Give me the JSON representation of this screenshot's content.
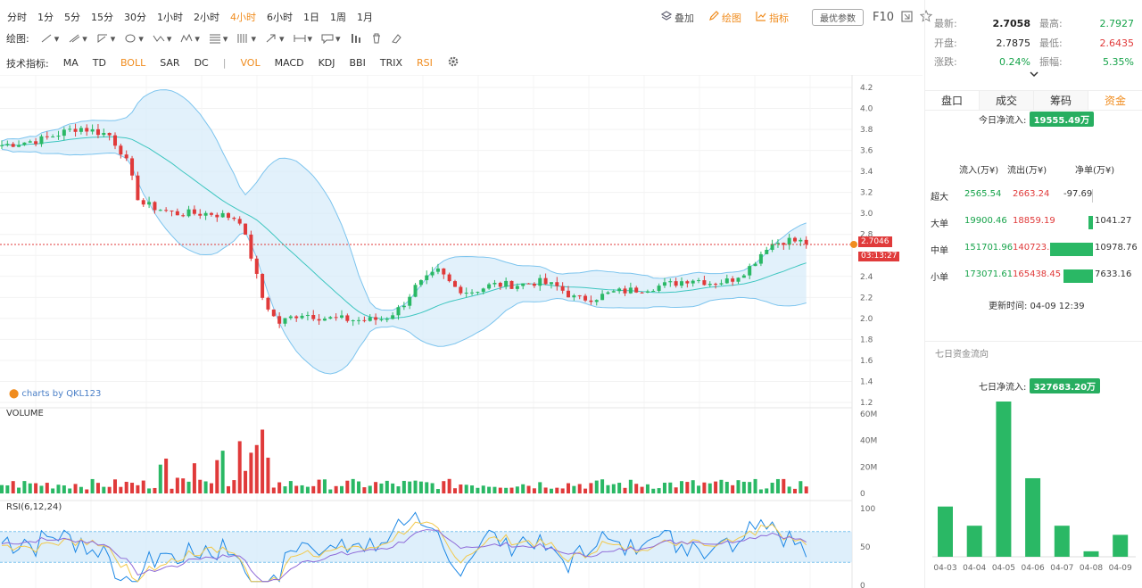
{
  "toolbar": {
    "timeframes": [
      "分时",
      "1分",
      "5分",
      "15分",
      "30分",
      "1小时",
      "2小时",
      "4小时",
      "6小时",
      "1日",
      "1周",
      "1月"
    ],
    "active_timeframe": "4小时",
    "overlay_label": "叠加",
    "draw_label": "绘图",
    "indicator_label": "指标",
    "optimal_params_label": "最优参数",
    "f10_label": "F10"
  },
  "drawing": {
    "label": "绘图:"
  },
  "indicators": {
    "label": "技术指标:",
    "items": [
      "MA",
      "TD",
      "BOLL",
      "SAR",
      "DC",
      "|",
      "VOL",
      "MACD",
      "KDJ",
      "BBI",
      "TRIX",
      "RSI"
    ],
    "highlighted": [
      "BOLL",
      "VOL",
      "RSI"
    ]
  },
  "watermark": "charts by QKL123",
  "volume_label": "VOLUME",
  "rsi_label": "RSI(6,12,24)",
  "price_tag": {
    "price": "2.7046",
    "countdown": "03:13:27"
  },
  "colors": {
    "up": "#2ab865",
    "down": "#e03a3a",
    "accent": "#f08c1e",
    "band_fill": "#d6ebfa",
    "band_line": "#7cc4ee",
    "mid_line": "#3ec6c0"
  },
  "chart_data": [
    {
      "type": "candlestick",
      "title": "",
      "ylim": [
        1.2,
        4.2
      ],
      "yticks": [
        "4.2",
        "4.0",
        "3.8",
        "3.6",
        "3.4",
        "3.2",
        "3.0",
        "2.8",
        "2.6",
        "2.4",
        "2.2",
        "2.0",
        "1.8",
        "1.6",
        "1.4",
        "1.2"
      ],
      "overlays": [
        "BOLL upper",
        "BOLL middle",
        "BOLL lower"
      ],
      "last_price": 2.7046
    },
    {
      "type": "bar",
      "title": "VOLUME",
      "ylim": [
        0,
        60
      ],
      "yticks": [
        "60M",
        "40M",
        "20M",
        "0"
      ]
    },
    {
      "type": "line",
      "title": "RSI(6,12,24)",
      "ylim": [
        0,
        100
      ],
      "yticks": [
        "100",
        "50",
        "0"
      ],
      "band": [
        30,
        70
      ]
    }
  ],
  "quote": {
    "latest_label": "最新:",
    "latest": "2.7058",
    "high_label": "最高:",
    "high": "2.7927",
    "open_label": "开盘:",
    "open": "2.7875",
    "low_label": "最低:",
    "low": "2.6435",
    "change_label": "涨跌:",
    "change": "0.24%",
    "amplitude_label": "振幅:",
    "amplitude": "5.35%"
  },
  "tabs": [
    "盘口",
    "成交",
    "筹码",
    "资金"
  ],
  "fund_flow": {
    "today_label": "今日净流入:",
    "today_value": "19555.49万",
    "headers": [
      "流入(万¥)",
      "流出(万¥)",
      "净单(万¥)"
    ],
    "rows": [
      {
        "label": "超大",
        "inflow": "2565.54",
        "outflow": "2663.24",
        "net": "-97.69",
        "net_value": -97.69
      },
      {
        "label": "大单",
        "inflow": "19900.46",
        "outflow": "18859.19",
        "net": "1041.27",
        "net_value": 1041.27
      },
      {
        "label": "中单",
        "inflow": "151701.96",
        "outflow": "140723.20",
        "net": "10978.76",
        "net_value": 10978.76
      },
      {
        "label": "小单",
        "inflow": "173071.61",
        "outflow": "165438.45",
        "net": "7633.16",
        "net_value": 7633.16
      }
    ],
    "update_time": "更新时间: 04-09 12:39"
  },
  "seven_day": {
    "title": "七日资金流向",
    "net_label": "七日净流入:",
    "net_value": "327683.20万",
    "chart_data": {
      "type": "bar",
      "categories": [
        "04-03",
        "04-04",
        "04-05",
        "04-06",
        "04-07",
        "04-08",
        "04-09"
      ],
      "values": [
        55,
        34,
        170,
        86,
        34,
        6,
        24
      ]
    }
  }
}
